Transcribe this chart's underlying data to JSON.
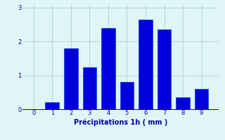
{
  "categories": [
    0,
    1,
    2,
    3,
    4,
    5,
    6,
    7,
    8,
    9
  ],
  "values": [
    0.0,
    0.2,
    1.8,
    1.25,
    2.4,
    0.8,
    2.65,
    2.35,
    0.35,
    0.6
  ],
  "bar_color": "#0000dd",
  "bar_edge_color": "#0044cc",
  "background_color": "#e0f5f5",
  "grid_color": "#b0d8d8",
  "xlabel": "Précipitations 1h ( mm )",
  "xlabel_color": "#0000aa",
  "tick_color": "#0000aa",
  "ylim": [
    0,
    3.1
  ],
  "xlim": [
    -0.6,
    9.9
  ],
  "yticks": [
    0,
    1,
    2,
    3
  ],
  "xticks": [
    0,
    1,
    2,
    3,
    4,
    5,
    6,
    7,
    8,
    9
  ],
  "bar_width": 0.75
}
